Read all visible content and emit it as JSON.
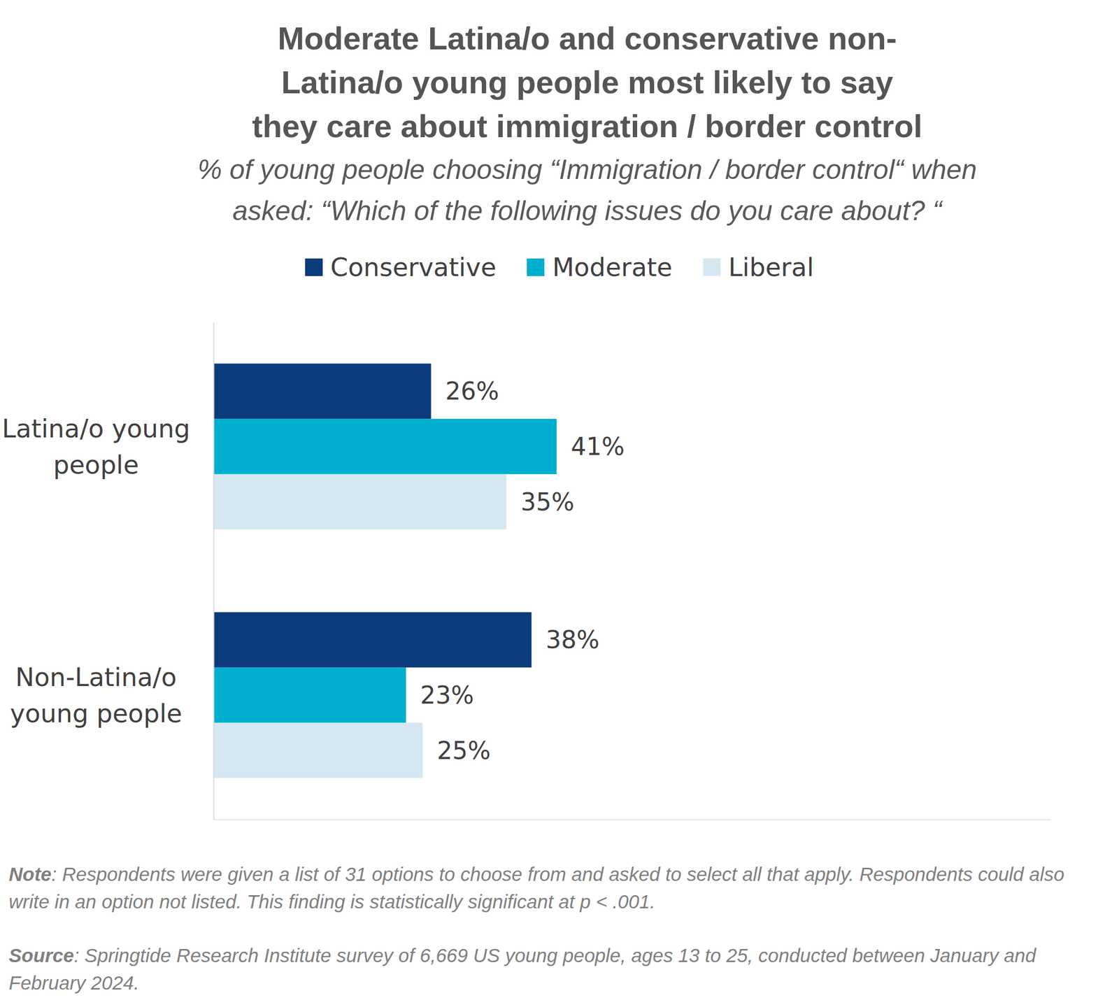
{
  "chart_data": {
    "type": "bar",
    "orientation": "horizontal",
    "title": "Moderate Latina/o and conservative non-Latina/o young people most likely to say they care about immigration / border control",
    "subtitle": "% of young people choosing “Immigration / border control“ when asked: “Which of the following issues do you care about? “",
    "categories": [
      "Latina/o young people",
      "Non-Latina/o young people"
    ],
    "series": [
      {
        "name": "Conservative",
        "color": "#0c3b7b",
        "values": [
          26,
          38
        ],
        "value_labels": [
          "26%",
          "38%"
        ]
      },
      {
        "name": "Moderate",
        "color": "#00aecf",
        "values": [
          41,
          23
        ],
        "value_labels": [
          "41%",
          "23%"
        ]
      },
      {
        "name": "Liberal",
        "color": "#d5e8f1",
        "values": [
          35,
          25
        ],
        "value_labels": [
          "35%",
          "25%"
        ]
      }
    ],
    "xlim": [
      0,
      100
    ],
    "tick_labels": false,
    "data_labels": true,
    "legend": "top",
    "annotations": [
      {
        "label": "Note",
        "text": ": Respondents were given a list of 31 options to choose from and asked to select all that apply. Respondents could also write in an option not listed. This finding is statistically significant at p < .001."
      },
      {
        "label": "Source",
        "text": ": Springtide Research Institute survey of 6,669 US young people, ages 13 to 25, conducted between January and February 2024."
      }
    ]
  }
}
